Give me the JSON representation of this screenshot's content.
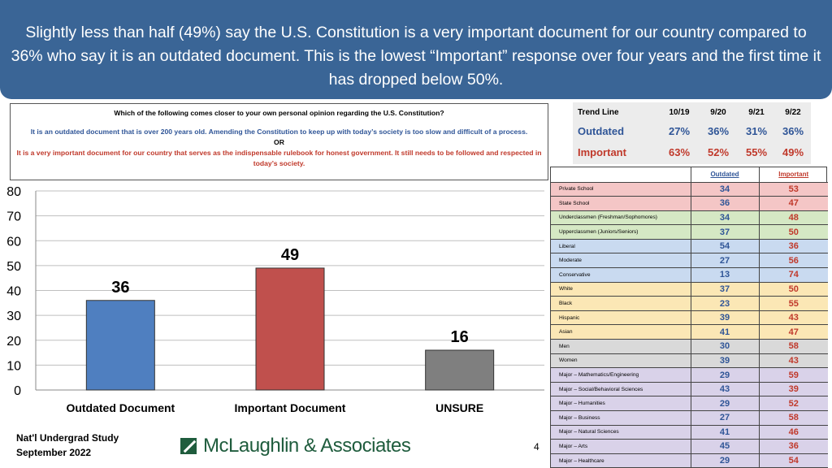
{
  "header": {
    "title": "Slightly less than half (49%) say the U.S. Constitution is a very important document for our country compared to 36% who say it is an outdated document. This is the lowest “Important” response over four years and the first time it has dropped below 50%."
  },
  "question": {
    "title": "Which of the following comes closer to your own personal opinion regarding the U.S. Constitution?",
    "outdated": "It is an outdated document that is over 200 years old. Amending the Constitution to keep up with today’s society is too slow and difficult of a process.",
    "or": "OR",
    "important": "It is a very important document for our country that serves as the indispensable rulebook for honest government. It still needs to be followed and respected in today’s society."
  },
  "trend": {
    "header": [
      "Trend Line",
      "10/19",
      "9/20",
      "9/21",
      "9/22"
    ],
    "outdated": [
      "Outdated",
      "27%",
      "36%",
      "31%",
      "36%"
    ],
    "important": [
      "Important",
      "63%",
      "52%",
      "55%",
      "49%"
    ]
  },
  "demographics": {
    "col_outdated": "Outdated",
    "col_important": "Important",
    "rows": [
      {
        "label": "Private School",
        "outdated": "34",
        "important": "53",
        "group": "red"
      },
      {
        "label": "State School",
        "outdated": "36",
        "important": "47",
        "group": "red"
      },
      {
        "label": "Underclassmen (Freshman/Sophomores)",
        "outdated": "34",
        "important": "48",
        "group": "green"
      },
      {
        "label": "Upperclassmen (Juniors/Seniors)",
        "outdated": "37",
        "important": "50",
        "group": "green"
      },
      {
        "label": "Liberal",
        "outdated": "54",
        "important": "36",
        "group": "blue"
      },
      {
        "label": "Moderate",
        "outdated": "27",
        "important": "56",
        "group": "blue"
      },
      {
        "label": "Conservative",
        "outdated": "13",
        "important": "74",
        "group": "blue"
      },
      {
        "label": "White",
        "outdated": "37",
        "important": "50",
        "group": "yellow"
      },
      {
        "label": "Black",
        "outdated": "23",
        "important": "55",
        "group": "yellow"
      },
      {
        "label": "Hispanic",
        "outdated": "39",
        "important": "43",
        "group": "yellow"
      },
      {
        "label": "Asian",
        "outdated": "41",
        "important": "47",
        "group": "yellow"
      },
      {
        "label": "Men",
        "outdated": "30",
        "important": "58",
        "group": "gray"
      },
      {
        "label": "Women",
        "outdated": "39",
        "important": "43",
        "group": "gray"
      },
      {
        "label": "Major – Mathematics/Engineering",
        "outdated": "29",
        "important": "59",
        "group": "purple"
      },
      {
        "label": "Major – Social/Behavioral Sciences",
        "outdated": "43",
        "important": "39",
        "group": "purple"
      },
      {
        "label": "Major – Humanities",
        "outdated": "29",
        "important": "52",
        "group": "purple"
      },
      {
        "label": "Major – Business",
        "outdated": "27",
        "important": "58",
        "group": "purple"
      },
      {
        "label": "Major – Natural Sciences",
        "outdated": "41",
        "important": "46",
        "group": "purple"
      },
      {
        "label": "Major – Arts",
        "outdated": "45",
        "important": "36",
        "group": "purple"
      },
      {
        "label": "Major – Healthcare",
        "outdated": "29",
        "important": "54",
        "group": "purple"
      }
    ]
  },
  "chart_data": {
    "type": "bar",
    "categories": [
      "Outdated Document",
      "Important Document",
      "UNSURE"
    ],
    "values": [
      36,
      49,
      16
    ],
    "colors": [
      "#4f7fc0",
      "#c0504d",
      "#7f7f7f"
    ],
    "ylim": [
      0,
      80
    ],
    "yticks": [
      0,
      10,
      20,
      30,
      40,
      50,
      60,
      70,
      80
    ],
    "grid": true
  },
  "footer": {
    "study": "Nat'l Undergrad Study",
    "date": "September 2022",
    "logo_text": "McLaughlin & Associates",
    "page": "4"
  }
}
